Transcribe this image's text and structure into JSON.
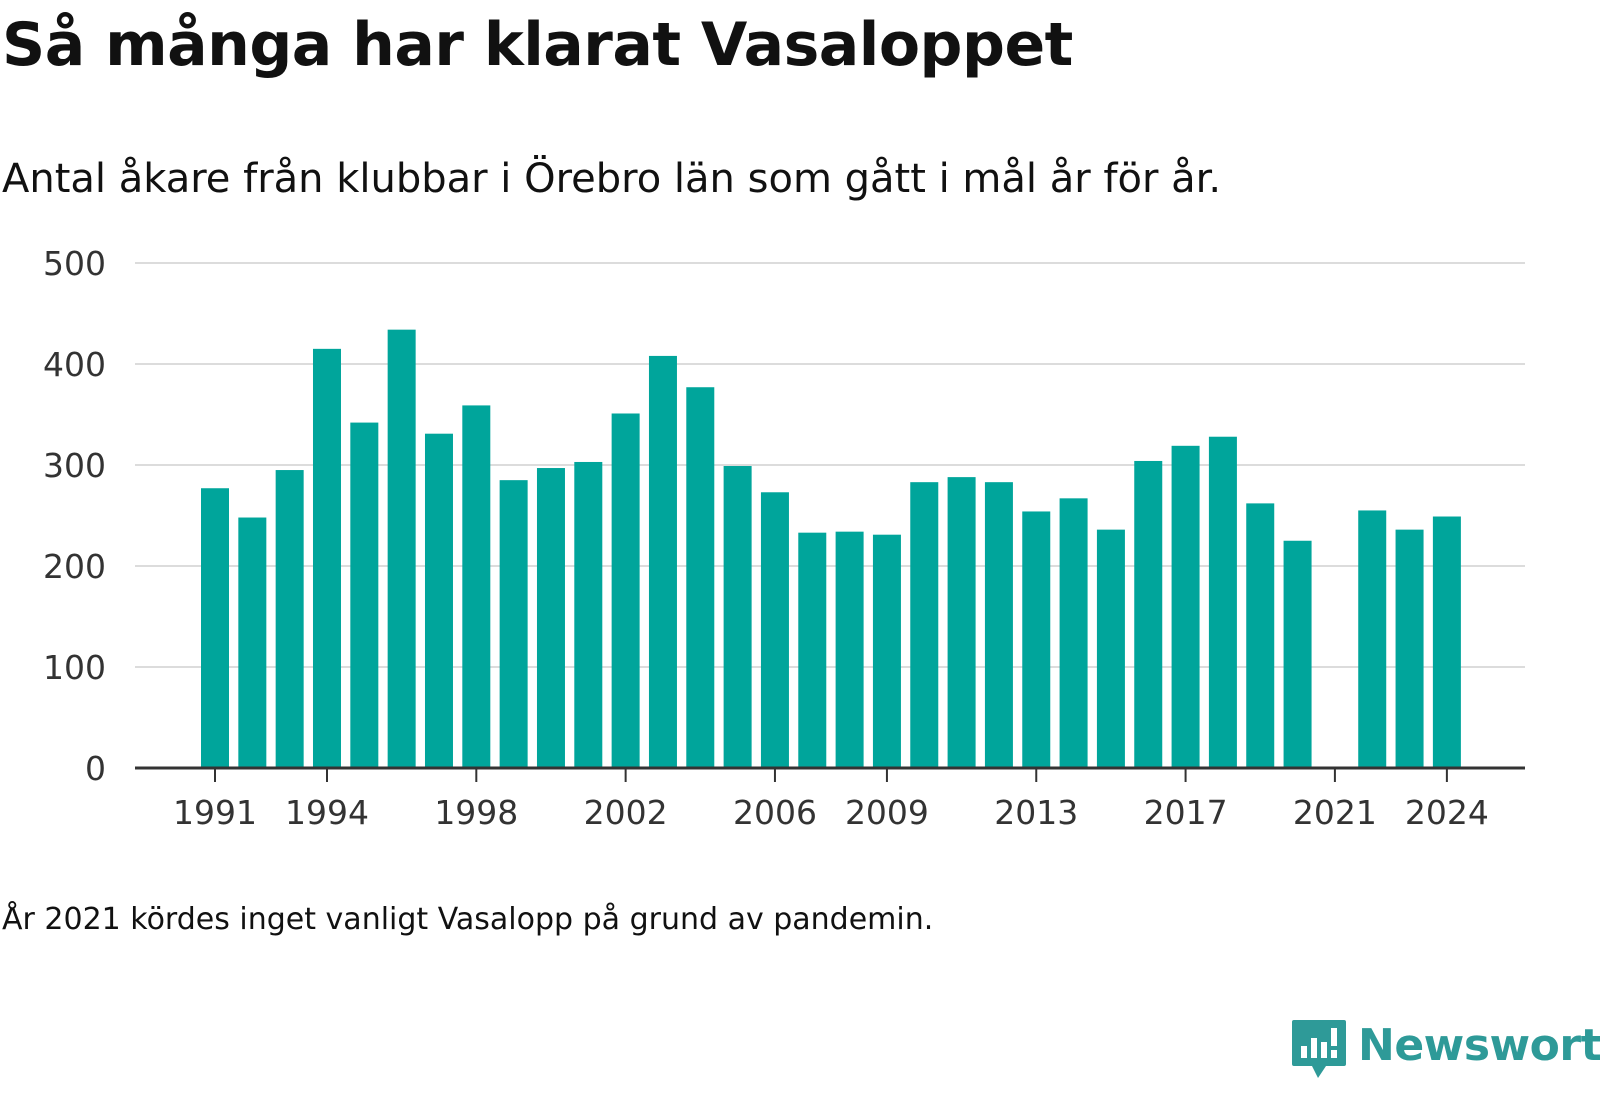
{
  "chart_data": {
    "type": "bar",
    "title": "Så många har klarat Vasaloppet",
    "subtitle": "Antal åkare från klubbar i Örebro län som gått i mål år för år.",
    "xlabel": "",
    "ylabel": "",
    "x": [
      1991,
      1992,
      1993,
      1994,
      1995,
      1996,
      1997,
      1998,
      1999,
      2000,
      2001,
      2002,
      2003,
      2004,
      2005,
      2006,
      2007,
      2008,
      2009,
      2010,
      2011,
      2012,
      2013,
      2014,
      2015,
      2016,
      2017,
      2018,
      2019,
      2020,
      2021,
      2022,
      2023,
      2024
    ],
    "values": [
      277,
      248,
      295,
      415,
      342,
      434,
      331,
      359,
      285,
      297,
      303,
      351,
      408,
      377,
      299,
      273,
      233,
      234,
      231,
      283,
      288,
      283,
      254,
      267,
      236,
      304,
      319,
      328,
      262,
      225,
      null,
      255,
      236,
      249
    ],
    "x_tick_labels": [
      "1991",
      "1994",
      "1998",
      "2002",
      "2006",
      "2009",
      "2013",
      "2017",
      "2021",
      "2024"
    ],
    "y_ticks": [
      0,
      100,
      200,
      300,
      400,
      500
    ],
    "ylim": [
      0,
      500
    ],
    "grid": true,
    "legend": "none",
    "bar_color": "#00a59b",
    "footnote": "År 2021 kördes inget vanligt Vasalopp på grund av pandemin."
  },
  "brand": {
    "name": "Newsworthy",
    "icon": "newsworthy-logo-icon",
    "color": "#2e9a98"
  }
}
